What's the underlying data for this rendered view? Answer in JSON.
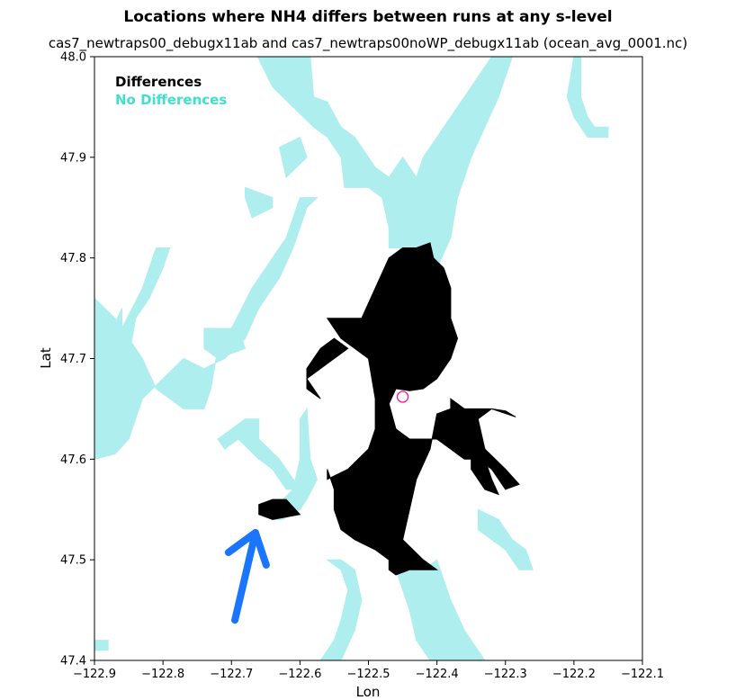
{
  "chart_data": {
    "type": "heatmap",
    "title": "Locations where NH4 differs between runs at any s-level",
    "subtitle": "cas7_newtraps00_debugx11ab and cas7_newtraps00noWP_debugx11ab (ocean_avg_0001.nc)",
    "xlabel": "Lon",
    "ylabel": "Lat",
    "xlim": [
      -122.9,
      -122.1
    ],
    "ylim": [
      47.4,
      48.0
    ],
    "xticks": [
      -122.9,
      -122.8,
      -122.7,
      -122.6,
      -122.5,
      -122.4,
      -122.3,
      -122.2,
      -122.1
    ],
    "yticks": [
      47.4,
      47.5,
      47.6,
      47.7,
      47.8,
      47.9,
      48.0
    ],
    "xtick_labels": [
      "−122.9",
      "−122.8",
      "−122.7",
      "−122.6",
      "−122.5",
      "−122.4",
      "−122.3",
      "−122.2",
      "−122.1"
    ],
    "ytick_labels": [
      "47.4",
      "47.5",
      "47.6",
      "47.7",
      "47.8",
      "47.9",
      "48.0"
    ],
    "legend": {
      "placement": "top-left",
      "entries": [
        {
          "label": "Differences",
          "color": "#000000"
        },
        {
          "label": "No Differences",
          "color": "#40e0d0"
        }
      ]
    },
    "colors": {
      "no_difference_fill": "#afeeee",
      "difference_fill": "#000000",
      "marker_stroke": "#ff1493",
      "arrow": "#1a75ff"
    },
    "marker": {
      "lon": -122.45,
      "lat": 47.662,
      "shape": "circle"
    },
    "arrow_annotation": {
      "from": {
        "lon": -122.695,
        "lat": 47.44
      },
      "to": {
        "lon": -122.665,
        "lat": 47.527
      },
      "color": "#1a75ff"
    },
    "regions": {
      "no_differences": [
        [
          [
            -122.662,
            48.0
          ],
          [
            -122.585,
            48.0
          ],
          [
            -122.58,
            47.96
          ],
          [
            -122.56,
            47.955
          ],
          [
            -122.54,
            47.93
          ],
          [
            -122.52,
            47.92
          ],
          [
            -122.49,
            47.89
          ],
          [
            -122.47,
            47.88
          ],
          [
            -122.45,
            47.9
          ],
          [
            -122.43,
            47.88
          ],
          [
            -122.42,
            47.9
          ],
          [
            -122.4,
            47.92
          ],
          [
            -122.37,
            47.95
          ],
          [
            -122.35,
            47.97
          ],
          [
            -122.32,
            48.0
          ],
          [
            -122.29,
            48.0
          ],
          [
            -122.31,
            47.96
          ],
          [
            -122.33,
            47.93
          ],
          [
            -122.35,
            47.9
          ],
          [
            -122.37,
            47.86
          ],
          [
            -122.38,
            47.82
          ],
          [
            -122.4,
            47.79
          ],
          [
            -122.42,
            47.79
          ],
          [
            -122.44,
            47.8
          ],
          [
            -122.455,
            47.81
          ],
          [
            -122.47,
            47.81
          ],
          [
            -122.47,
            47.83
          ],
          [
            -122.48,
            47.86
          ],
          [
            -122.5,
            47.87
          ],
          [
            -122.535,
            47.87
          ],
          [
            -122.54,
            47.9
          ],
          [
            -122.56,
            47.92
          ],
          [
            -122.58,
            47.93
          ],
          [
            -122.61,
            47.95
          ],
          [
            -122.64,
            47.97
          ]
        ],
        [
          [
            -122.9,
            47.6
          ],
          [
            -122.87,
            47.605
          ],
          [
            -122.85,
            47.62
          ],
          [
            -122.84,
            47.64
          ],
          [
            -122.83,
            47.66
          ],
          [
            -122.8,
            47.68
          ],
          [
            -122.77,
            47.7
          ],
          [
            -122.74,
            47.69
          ],
          [
            -122.71,
            47.7
          ],
          [
            -122.68,
            47.72
          ],
          [
            -122.66,
            47.75
          ],
          [
            -122.63,
            47.78
          ],
          [
            -122.61,
            47.81
          ],
          [
            -122.6,
            47.83
          ],
          [
            -122.59,
            47.85
          ],
          [
            -122.575,
            47.86
          ],
          [
            -122.6,
            47.86
          ],
          [
            -122.62,
            47.82
          ],
          [
            -122.64,
            47.8
          ],
          [
            -122.67,
            47.77
          ],
          [
            -122.7,
            47.73
          ],
          [
            -122.72,
            47.71
          ],
          [
            -122.73,
            47.67
          ],
          [
            -122.74,
            47.65
          ],
          [
            -122.77,
            47.65
          ],
          [
            -122.81,
            47.67
          ],
          [
            -122.83,
            47.7
          ],
          [
            -122.85,
            47.72
          ],
          [
            -122.87,
            47.74
          ],
          [
            -122.9,
            47.76
          ]
        ],
        [
          [
            -122.9,
            47.66
          ],
          [
            -122.87,
            47.68
          ],
          [
            -122.85,
            47.7
          ],
          [
            -122.84,
            47.74
          ],
          [
            -122.82,
            47.76
          ],
          [
            -122.8,
            47.79
          ],
          [
            -122.79,
            47.81
          ],
          [
            -122.81,
            47.81
          ],
          [
            -122.83,
            47.77
          ],
          [
            -122.86,
            47.73
          ],
          [
            -122.89,
            47.69
          ],
          [
            -122.9,
            47.68
          ]
        ],
        [
          [
            -122.9,
            47.68
          ],
          [
            -122.88,
            47.72
          ],
          [
            -122.86,
            47.75
          ],
          [
            -122.86,
            47.7
          ],
          [
            -122.89,
            47.69
          ]
        ],
        [
          [
            -122.59,
            47.9
          ],
          [
            -122.62,
            47.88
          ],
          [
            -122.63,
            47.91
          ],
          [
            -122.6,
            47.92
          ]
        ],
        [
          [
            -122.68,
            47.87
          ],
          [
            -122.64,
            47.86
          ],
          [
            -122.64,
            47.85
          ],
          [
            -122.67,
            47.84
          ],
          [
            -122.68,
            47.86
          ]
        ],
        [
          [
            -122.74,
            47.73
          ],
          [
            -122.69,
            47.73
          ],
          [
            -122.68,
            47.71
          ],
          [
            -122.72,
            47.7
          ],
          [
            -122.74,
            47.71
          ]
        ],
        [
          [
            -122.6,
            47.64
          ],
          [
            -122.59,
            47.65
          ],
          [
            -122.585,
            47.6
          ],
          [
            -122.575,
            47.58
          ],
          [
            -122.59,
            47.56
          ],
          [
            -122.6,
            47.55
          ],
          [
            -122.625,
            47.54
          ],
          [
            -122.64,
            47.54
          ],
          [
            -122.64,
            47.55
          ],
          [
            -122.61,
            47.57
          ],
          [
            -122.6,
            47.6
          ]
        ],
        [
          [
            -122.68,
            47.64
          ],
          [
            -122.66,
            47.64
          ],
          [
            -122.66,
            47.62
          ],
          [
            -122.63,
            47.6
          ],
          [
            -122.61,
            47.58
          ],
          [
            -122.6,
            47.57
          ],
          [
            -122.62,
            47.57
          ],
          [
            -122.64,
            47.59
          ],
          [
            -122.66,
            47.6
          ],
          [
            -122.69,
            47.62
          ],
          [
            -122.71,
            47.61
          ],
          [
            -122.72,
            47.62
          ],
          [
            -122.7,
            47.63
          ]
        ],
        [
          [
            -122.56,
            47.5
          ],
          [
            -122.54,
            47.49
          ],
          [
            -122.53,
            47.47
          ],
          [
            -122.54,
            47.44
          ],
          [
            -122.55,
            47.42
          ],
          [
            -122.57,
            47.4
          ],
          [
            -122.54,
            47.4
          ],
          [
            -122.52,
            47.43
          ],
          [
            -122.51,
            47.46
          ],
          [
            -122.52,
            47.49
          ],
          [
            -122.54,
            47.5
          ]
        ],
        [
          [
            -122.46,
            47.49
          ],
          [
            -122.45,
            47.47
          ],
          [
            -122.44,
            47.45
          ],
          [
            -122.43,
            47.42
          ],
          [
            -122.41,
            47.4
          ],
          [
            -122.33,
            47.4
          ],
          [
            -122.36,
            47.43
          ],
          [
            -122.38,
            47.46
          ],
          [
            -122.39,
            47.48
          ],
          [
            -122.4,
            47.5
          ],
          [
            -122.42,
            47.49
          ]
        ],
        [
          [
            -122.34,
            47.55
          ],
          [
            -122.31,
            47.54
          ],
          [
            -122.29,
            47.52
          ],
          [
            -122.27,
            47.51
          ],
          [
            -122.26,
            47.49
          ],
          [
            -122.28,
            47.49
          ],
          [
            -122.3,
            47.51
          ],
          [
            -122.32,
            47.52
          ],
          [
            -122.34,
            47.53
          ]
        ],
        [
          [
            -122.35,
            47.6
          ],
          [
            -122.34,
            47.62
          ],
          [
            -122.33,
            47.59
          ],
          [
            -122.34,
            47.58
          ]
        ],
        [
          [
            -122.2,
            48.0
          ],
          [
            -122.19,
            48.0
          ],
          [
            -122.19,
            47.96
          ],
          [
            -122.18,
            47.94
          ],
          [
            -122.17,
            47.93
          ],
          [
            -122.15,
            47.93
          ],
          [
            -122.15,
            47.92
          ],
          [
            -122.18,
            47.92
          ],
          [
            -122.2,
            47.94
          ],
          [
            -122.21,
            47.96
          ]
        ],
        [
          [
            -122.9,
            47.42
          ],
          [
            -122.88,
            47.42
          ],
          [
            -122.88,
            47.41
          ],
          [
            -122.9,
            47.41
          ]
        ]
      ],
      "differences": [
        [
          [
            -122.43,
            47.81
          ],
          [
            -122.41,
            47.815
          ],
          [
            -122.405,
            47.8
          ],
          [
            -122.39,
            47.79
          ],
          [
            -122.38,
            47.77
          ],
          [
            -122.38,
            47.74
          ],
          [
            -122.37,
            47.72
          ],
          [
            -122.38,
            47.7
          ],
          [
            -122.39,
            47.69
          ],
          [
            -122.4,
            47.68
          ],
          [
            -122.42,
            47.67
          ],
          [
            -122.44,
            47.668
          ],
          [
            -122.46,
            47.67
          ],
          [
            -122.47,
            47.655
          ],
          [
            -122.46,
            47.63
          ],
          [
            -122.44,
            47.62
          ],
          [
            -122.4,
            47.62
          ],
          [
            -122.38,
            47.61
          ],
          [
            -122.36,
            47.6
          ],
          [
            -122.34,
            47.6
          ],
          [
            -122.32,
            47.59
          ],
          [
            -122.3,
            47.57
          ],
          [
            -122.28,
            47.575
          ],
          [
            -122.3,
            47.59
          ],
          [
            -122.33,
            47.61
          ],
          [
            -122.34,
            47.64
          ],
          [
            -122.32,
            47.65
          ],
          [
            -122.3,
            47.648
          ],
          [
            -122.285,
            47.642
          ],
          [
            -122.32,
            47.65
          ],
          [
            -122.36,
            47.65
          ],
          [
            -122.38,
            47.66
          ],
          [
            -122.38,
            47.65
          ],
          [
            -122.4,
            47.645
          ],
          [
            -122.41,
            47.61
          ],
          [
            -122.43,
            47.58
          ],
          [
            -122.44,
            47.55
          ],
          [
            -122.45,
            47.52
          ],
          [
            -122.42,
            47.5
          ],
          [
            -122.4,
            47.49
          ],
          [
            -122.42,
            47.49
          ],
          [
            -122.44,
            47.49
          ],
          [
            -122.46,
            47.485
          ],
          [
            -122.47,
            47.49
          ],
          [
            -122.47,
            47.5
          ],
          [
            -122.49,
            47.51
          ],
          [
            -122.52,
            47.52
          ],
          [
            -122.54,
            47.53
          ],
          [
            -122.55,
            47.55
          ],
          [
            -122.55,
            47.57
          ],
          [
            -122.56,
            47.59
          ],
          [
            -122.56,
            47.58
          ],
          [
            -122.53,
            47.59
          ],
          [
            -122.5,
            47.61
          ],
          [
            -122.49,
            47.63
          ],
          [
            -122.49,
            47.66
          ],
          [
            -122.5,
            47.7
          ],
          [
            -122.54,
            47.72
          ],
          [
            -122.56,
            47.74
          ],
          [
            -122.51,
            47.74
          ],
          [
            -122.49,
            47.77
          ],
          [
            -122.47,
            47.8
          ],
          [
            -122.45,
            47.81
          ]
        ],
        [
          [
            -122.59,
            47.68
          ],
          [
            -122.55,
            47.7
          ],
          [
            -122.53,
            47.71
          ],
          [
            -122.55,
            47.72
          ],
          [
            -122.57,
            47.71
          ],
          [
            -122.59,
            47.69
          ],
          [
            -122.59,
            47.67
          ],
          [
            -122.57,
            47.66
          ]
        ],
        [
          [
            -122.64,
            47.56
          ],
          [
            -122.62,
            47.56
          ],
          [
            -122.6,
            47.545
          ],
          [
            -122.64,
            47.54
          ],
          [
            -122.66,
            47.545
          ],
          [
            -122.66,
            47.555
          ]
        ],
        [
          [
            -122.35,
            47.61
          ],
          [
            -122.33,
            47.6
          ],
          [
            -122.32,
            47.58
          ],
          [
            -122.31,
            47.565
          ],
          [
            -122.33,
            47.57
          ],
          [
            -122.35,
            47.59
          ]
        ]
      ]
    }
  }
}
